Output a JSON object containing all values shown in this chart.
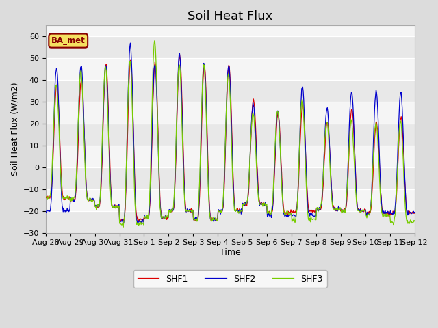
{
  "title": "Soil Heat Flux",
  "ylabel": "Soil Heat Flux (W/m2)",
  "xlabel": "Time",
  "ylim": [
    -30,
    65
  ],
  "yticks": [
    -30,
    -20,
    -10,
    0,
    10,
    20,
    30,
    40,
    50,
    60
  ],
  "bg_color": "#dcdcdc",
  "plot_bg": "#f5f5f5",
  "line_colors": {
    "SHF1": "#dd0000",
    "SHF2": "#0000cc",
    "SHF3": "#77cc00"
  },
  "annotation_text": "BA_met",
  "annotation_bg": "#f5e060",
  "annotation_border": "#880000",
  "x_tick_labels": [
    "Aug 28",
    "Aug 29",
    "Aug 30",
    "Aug 31",
    "Sep 1",
    "Sep 2",
    "Sep 3",
    "Sep 4",
    "Sep 5",
    "Sep 6",
    "Sep 7",
    "Sep 8",
    "Sep 9",
    "Sep 10",
    "Sep 11",
    "Sep 12"
  ],
  "title_fontsize": 13,
  "axis_label_fontsize": 9,
  "tick_fontsize": 8,
  "peak_shf1": [
    38,
    40,
    47,
    49,
    48,
    52,
    47,
    47,
    31,
    25,
    29,
    21,
    27,
    21,
    23
  ],
  "peak_shf2": [
    46,
    47,
    47,
    56,
    48,
    52,
    48,
    47,
    29,
    26,
    37,
    27,
    35,
    35,
    34
  ],
  "peak_shf3": [
    38,
    44,
    46,
    49,
    58,
    47,
    47,
    43,
    25,
    26,
    31,
    21,
    21,
    21,
    21
  ],
  "trough_shf1": [
    -14,
    -15,
    -18,
    -24,
    -23,
    -20,
    -24,
    -20,
    -17,
    -21,
    -20,
    -19,
    -20,
    -21,
    -21
  ],
  "trough_shf2": [
    -20,
    -15,
    -18,
    -25,
    -23,
    -20,
    -24,
    -20,
    -17,
    -22,
    -22,
    -19,
    -20,
    -21,
    -21
  ],
  "trough_shf3": [
    -14,
    -15,
    -18,
    -26,
    -23,
    -20,
    -24,
    -20,
    -17,
    -21,
    -24,
    -19,
    -20,
    -22,
    -25
  ]
}
